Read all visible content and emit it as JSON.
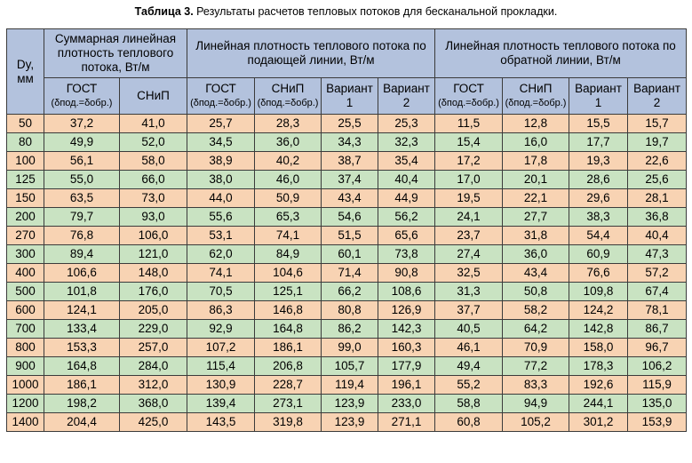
{
  "caption": {
    "label": "Таблица 3.",
    "text": " Результаты расчетов тепловых потоков для бесканальной прокладки."
  },
  "header": {
    "dy": [
      "Dy,",
      "мм"
    ],
    "group_sum": "Суммарная линейная плотность теплового потока, Вт/м",
    "group_supply": "Линейная плотность теплового потока по подающей линии, Вт/м",
    "group_return": "Линейная плотность теплового потока по обратной линии, Вт/м",
    "gost": "ГОСТ",
    "gost_sub": "(δпод.=δобр.)",
    "snip": "СНиП",
    "snip_sub": "(δпод.=δобр.)",
    "variant1": [
      "Вариант",
      "1"
    ],
    "variant2": [
      "Вариант",
      "2"
    ]
  },
  "rows": [
    [
      "50",
      "37,2",
      "41,0",
      "25,7",
      "28,3",
      "25,5",
      "25,3",
      "11,5",
      "12,8",
      "15,5",
      "15,7"
    ],
    [
      "80",
      "49,9",
      "52,0",
      "34,5",
      "36,0",
      "34,3",
      "32,3",
      "15,4",
      "16,0",
      "17,7",
      "19,7"
    ],
    [
      "100",
      "56,1",
      "58,0",
      "38,9",
      "40,2",
      "38,7",
      "35,4",
      "17,2",
      "17,8",
      "19,3",
      "22,6"
    ],
    [
      "125",
      "55,0",
      "66,0",
      "38,0",
      "46,0",
      "37,4",
      "40,4",
      "17,0",
      "20,1",
      "28,6",
      "25,6"
    ],
    [
      "150",
      "63,5",
      "73,0",
      "44,0",
      "50,9",
      "43,4",
      "44,9",
      "19,5",
      "22,1",
      "29,6",
      "28,1"
    ],
    [
      "200",
      "79,7",
      "93,0",
      "55,6",
      "65,3",
      "54,6",
      "56,2",
      "24,1",
      "27,7",
      "38,3",
      "36,8"
    ],
    [
      "270",
      "76,8",
      "106,0",
      "53,1",
      "74,1",
      "51,5",
      "65,6",
      "23,7",
      "31,8",
      "54,4",
      "40,4"
    ],
    [
      "300",
      "89,4",
      "121,0",
      "62,0",
      "84,9",
      "60,1",
      "73,8",
      "27,4",
      "36,0",
      "60,9",
      "47,3"
    ],
    [
      "400",
      "106,6",
      "148,0",
      "74,1",
      "104,6",
      "71,4",
      "90,8",
      "32,5",
      "43,4",
      "76,6",
      "57,2"
    ],
    [
      "500",
      "101,8",
      "176,0",
      "70,5",
      "125,1",
      "66,2",
      "108,6",
      "31,3",
      "50,8",
      "109,8",
      "67,4"
    ],
    [
      "600",
      "124,1",
      "205,0",
      "86,3",
      "146,8",
      "80,8",
      "126,9",
      "37,7",
      "58,2",
      "124,2",
      "78,1"
    ],
    [
      "700",
      "133,4",
      "229,0",
      "92,9",
      "164,8",
      "86,2",
      "142,3",
      "40,5",
      "64,2",
      "142,8",
      "86,7"
    ],
    [
      "800",
      "153,3",
      "257,0",
      "107,2",
      "186,1",
      "99,0",
      "160,3",
      "46,1",
      "70,9",
      "158,0",
      "96,7"
    ],
    [
      "900",
      "164,8",
      "284,0",
      "115,4",
      "206,8",
      "105,7",
      "177,9",
      "49,4",
      "77,2",
      "178,3",
      "106,2"
    ],
    [
      "1000",
      "186,1",
      "312,0",
      "130,9",
      "228,7",
      "119,4",
      "196,1",
      "55,2",
      "83,3",
      "192,6",
      "115,9"
    ],
    [
      "1200",
      "198,2",
      "368,0",
      "139,4",
      "273,1",
      "123,9",
      "233,0",
      "58,8",
      "94,9",
      "244,1",
      "135,0"
    ],
    [
      "1400",
      "204,4",
      "425,0",
      "143,5",
      "319,8",
      "123,9",
      "271,1",
      "60,8",
      "105,2",
      "301,2",
      "153,9"
    ]
  ],
  "colors": {
    "header_bg": "#b3c2dd",
    "row_orange": "#f8d3b3",
    "row_green": "#c9e3c2",
    "border": "#3b3b3b"
  }
}
